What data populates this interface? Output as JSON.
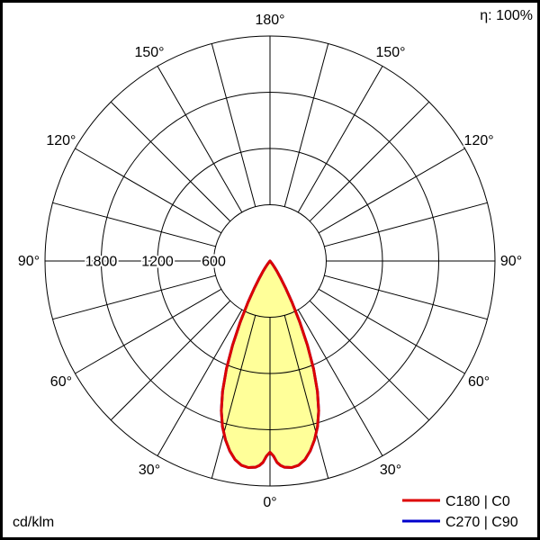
{
  "meta": {
    "efficiency_label": "η: 100%",
    "unit_label": "cd/klm"
  },
  "legend": [
    {
      "label": "C180 | C0",
      "color": "#dd0000"
    },
    {
      "label": "C270 | C90",
      "color": "#0000cc"
    }
  ],
  "chart_data": {
    "type": "line",
    "subtype": "polar-photometric",
    "title": "Luminous intensity distribution polar curve",
    "units": "cd/klm",
    "rmax": 2400,
    "rings": [
      600,
      1200,
      1800,
      2400
    ],
    "labeled_rings": [
      {
        "value": 1800,
        "label": "1800"
      },
      {
        "value": 1200,
        "label": "1200"
      },
      {
        "value": 600,
        "label": "600"
      }
    ],
    "spoke_step_deg": 15,
    "gamma_ticks": [
      0,
      30,
      60,
      90,
      120,
      150,
      180
    ],
    "symmetric": true,
    "grid": true,
    "legend_position": "bottom-right",
    "series": [
      {
        "name": "C180 | C0",
        "color": "#dd0000",
        "fill": "#ffff99",
        "gamma": [
          0,
          1,
          2,
          3,
          4,
          6,
          8,
          10,
          12,
          14,
          16,
          18,
          20,
          22,
          24,
          26,
          28,
          30,
          32,
          34,
          36,
          38,
          40,
          42,
          45,
          48
        ],
        "values": [
          2040,
          2080,
          2150,
          2185,
          2205,
          2215,
          2200,
          2150,
          2070,
          1965,
          1840,
          1680,
          1480,
          1240,
          980,
          720,
          500,
          330,
          210,
          130,
          75,
          40,
          20,
          10,
          4,
          0
        ]
      },
      {
        "name": "C270 | C90",
        "color": "#0000cc",
        "fill": "none",
        "gamma": [
          0,
          1,
          2,
          3,
          4,
          6,
          8,
          10,
          12,
          14,
          16,
          18,
          20,
          22,
          24,
          26,
          28,
          30,
          32,
          34,
          36,
          38,
          40,
          42,
          45,
          48
        ],
        "values": [
          2040,
          2080,
          2150,
          2185,
          2205,
          2215,
          2200,
          2150,
          2070,
          1965,
          1840,
          1680,
          1480,
          1240,
          980,
          720,
          500,
          330,
          210,
          130,
          75,
          40,
          20,
          10,
          4,
          0
        ]
      }
    ]
  }
}
